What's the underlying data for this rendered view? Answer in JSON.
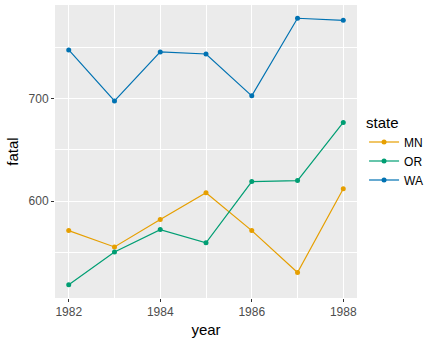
{
  "chart_data": {
    "type": "line",
    "x_label": "year",
    "y_label": "fatal",
    "legend_title": "state",
    "x": [
      1982,
      1983,
      1984,
      1985,
      1986,
      1987,
      1988
    ],
    "series": [
      {
        "name": "MN",
        "color": "#E69F00",
        "values": [
          571,
          555,
          582,
          608,
          571,
          530,
          612
        ]
      },
      {
        "name": "OR",
        "color": "#009E73",
        "values": [
          518,
          550,
          572,
          559,
          619,
          620,
          677
        ]
      },
      {
        "name": "WA",
        "color": "#0072B2",
        "values": [
          748,
          698,
          746,
          744,
          703,
          779,
          777
        ]
      }
    ],
    "xlim": [
      1981.7,
      1988.3
    ],
    "xticks": [
      1982,
      1984,
      1986,
      1988
    ],
    "ylim": [
      505,
      792
    ],
    "yticks": [
      600,
      700
    ],
    "grid": true,
    "legend": "right",
    "marker": "circle"
  }
}
